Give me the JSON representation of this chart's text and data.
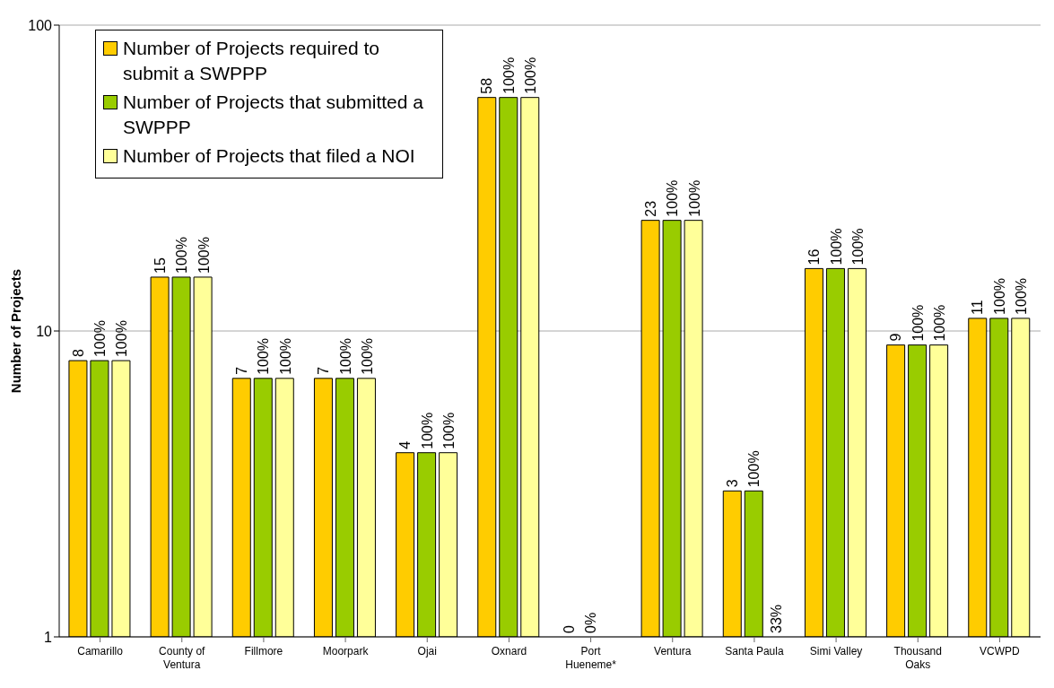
{
  "chart_data": {
    "type": "bar",
    "ylabel": "Number of Projects",
    "categories": [
      "Camarillo",
      "County of Ventura",
      "Fillmore",
      "Moorpark",
      "Ojai",
      "Oxnard",
      "Port Hueneme*",
      "Ventura",
      "Santa Paula",
      "Simi Valley",
      "Thousand Oaks",
      "VCWPD"
    ],
    "series": [
      {
        "name": "Number of Projects required to submit a SWPPP",
        "color": "#ffcc00",
        "values": [
          8,
          15,
          7,
          7,
          4,
          58,
          null,
          23,
          3,
          16,
          9,
          11
        ],
        "value_labels": [
          "8",
          "15",
          "7",
          "7",
          "4",
          "58",
          "0",
          "23",
          "3",
          "16",
          "9",
          "11"
        ]
      },
      {
        "name": "Number of Projects that submitted a SWPPP",
        "color": "#99cc00",
        "values": [
          8,
          15,
          7,
          7,
          4,
          58,
          null,
          23,
          3,
          16,
          9,
          11
        ]
      },
      {
        "name": "Number of Projects that filed a NOI",
        "color": "#ffff99",
        "values": [
          8,
          15,
          7,
          7,
          4,
          58,
          null,
          23,
          1,
          16,
          9,
          11
        ]
      }
    ],
    "annotations": [
      {
        "text": "100%",
        "x": "Camarillo",
        "y": 8
      },
      {
        "text": "100%",
        "x": "Camarillo",
        "y": 8
      },
      {
        "text": "100%",
        "x": "County of Ventura",
        "y": 15
      },
      {
        "text": "100%",
        "x": "County of Ventura",
        "y": 15
      },
      {
        "text": "100%",
        "x": "Fillmore",
        "y": 7
      },
      {
        "text": "100%",
        "x": "Fillmore",
        "y": 7
      },
      {
        "text": "100%",
        "x": "Moorpark",
        "y": 7
      },
      {
        "text": "100%",
        "x": "Moorpark",
        "y": 7
      },
      {
        "text": "100%",
        "x": "Ojai",
        "y": 4
      },
      {
        "text": "100%",
        "x": "Ojai",
        "y": 4
      },
      {
        "text": "100%",
        "x": "Oxnard",
        "y": 58
      },
      {
        "text": "100%",
        "x": "Oxnard",
        "y": 58
      },
      "0%",
      {
        "text": "100%",
        "x": "Ventura",
        "y": 23
      },
      {
        "text": "100%",
        "x": "Ventura",
        "y": 23
      },
      {
        "text": "100%",
        "x": "Santa Paula",
        "y": 3
      },
      {
        "text": "33%",
        "x": "Santa Paula",
        "y": 1
      },
      {
        "text": "100%",
        "x": "Simi Valley",
        "y": 16
      },
      {
        "text": "100%",
        "x": "Simi Valley",
        "y": 16
      },
      {
        "text": "100%",
        "x": "Thousand Oaks",
        "y": 9
      },
      {
        "text": "100%",
        "x": "Thousand Oaks",
        "y": 9
      },
      {
        "text": "100%",
        "x": "VCWPD",
        "y": 11
      },
      {
        "text": "100%",
        "x": "VCWPD",
        "y": 11
      }
    ],
    "log": true,
    "ylim": [
      1,
      100
    ],
    "yticks": [
      1,
      10,
      100
    ],
    "grid": "y",
    "legend": "top left"
  }
}
